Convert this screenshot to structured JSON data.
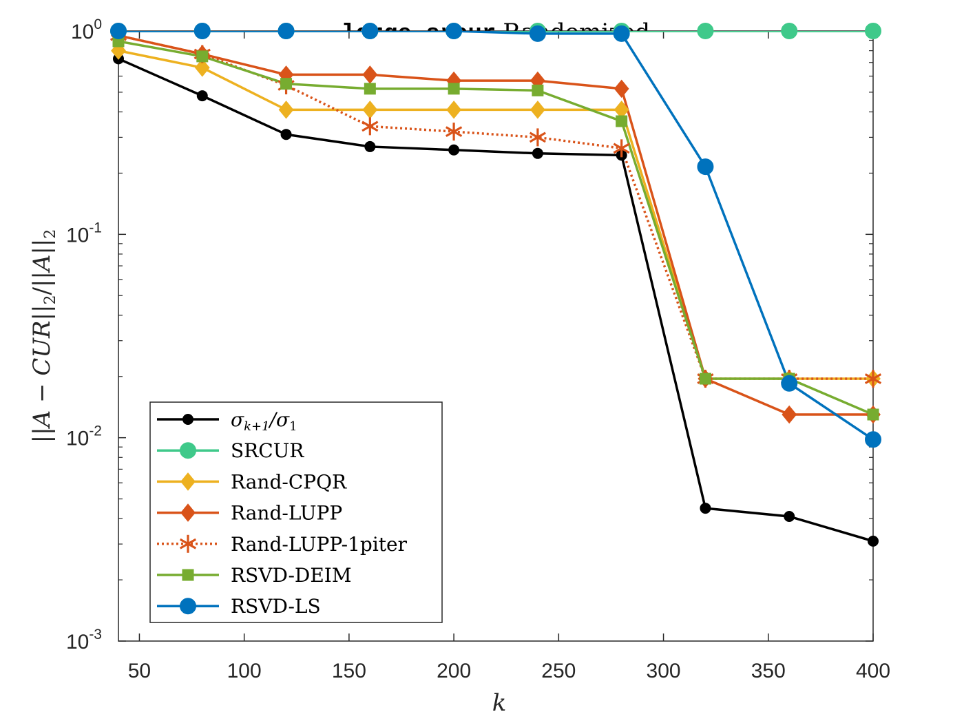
{
  "chart_data": {
    "type": "line",
    "title_mono": "large-srcur",
    "title_rest": "Randomized",
    "xlabel": "k",
    "ylabel": "||A − CUR||₂/||A||₂",
    "ylabel_parts": {
      "a": "||",
      "b": "A − CUR",
      "c": "||",
      "d": "2",
      "e": "/||",
      "f": "A",
      "g": "||",
      "h": "2"
    },
    "xlim": [
      40,
      400
    ],
    "ylim": [
      0.001,
      1
    ],
    "yscale": "log",
    "grid": false,
    "legend_position": "bottom-left",
    "xticks": [
      50,
      100,
      150,
      200,
      250,
      300,
      350,
      400
    ],
    "xtick_labels": [
      "50",
      "100",
      "150",
      "200",
      "250",
      "300",
      "350",
      "400"
    ],
    "yticks": [
      0.001,
      0.01,
      0.1,
      1
    ],
    "ytick_labels": [
      {
        "base": "10",
        "exp": "-3"
      },
      {
        "base": "10",
        "exp": "-2"
      },
      {
        "base": "10",
        "exp": "-1"
      },
      {
        "base": "10",
        "exp": "0"
      }
    ],
    "x": [
      40,
      80,
      120,
      160,
      200,
      240,
      280,
      320,
      360,
      400
    ],
    "series": [
      {
        "name": "σ_{k+1}/σ_1",
        "legend": {
          "sigma": "σ",
          "sub1": "k+1",
          "slash": "/σ",
          "sub2": "1"
        },
        "color": "#000000",
        "marker": "circle",
        "style": "solid",
        "values": [
          0.73,
          0.48,
          0.31,
          0.27,
          0.26,
          0.25,
          0.245,
          0.0045,
          0.0041,
          0.0031
        ]
      },
      {
        "name": "SRCUR",
        "color": "#3FC98A",
        "marker": "bigcircle",
        "style": "solid",
        "values": [
          1.0,
          1.0,
          1.0,
          1.0,
          1.0,
          1.0,
          1.0,
          1.0,
          1.0,
          1.0
        ]
      },
      {
        "name": "Rand-CPQR",
        "color": "#EDB120",
        "marker": "diamond",
        "style": "solid",
        "values": [
          0.8,
          0.66,
          0.41,
          0.41,
          0.41,
          0.41,
          0.41,
          0.0195,
          0.0195,
          0.0195
        ]
      },
      {
        "name": "Rand-LUPP",
        "color": "#D95319",
        "marker": "diamond",
        "style": "solid",
        "values": [
          0.95,
          0.77,
          0.61,
          0.61,
          0.57,
          0.57,
          0.52,
          0.0195,
          0.013,
          0.013
        ]
      },
      {
        "name": "Rand-LUPP-1piter",
        "color": "#D95319",
        "marker": "asterisk",
        "style": "dotted",
        "values": [
          0.95,
          0.77,
          0.54,
          0.34,
          0.32,
          0.3,
          0.265,
          0.0195,
          0.0195,
          0.0195
        ]
      },
      {
        "name": "RSVD-DEIM",
        "color": "#77AC30",
        "marker": "square",
        "style": "solid",
        "values": [
          0.89,
          0.75,
          0.55,
          0.52,
          0.52,
          0.51,
          0.36,
          0.0195,
          0.0195,
          0.013
        ]
      },
      {
        "name": "RSVD-LS",
        "color": "#0072BD",
        "marker": "bigcircle",
        "style": "solid",
        "values": [
          1.0,
          1.0,
          1.0,
          1.0,
          1.0,
          0.97,
          0.97,
          0.215,
          0.0185,
          0.0098
        ]
      }
    ]
  }
}
